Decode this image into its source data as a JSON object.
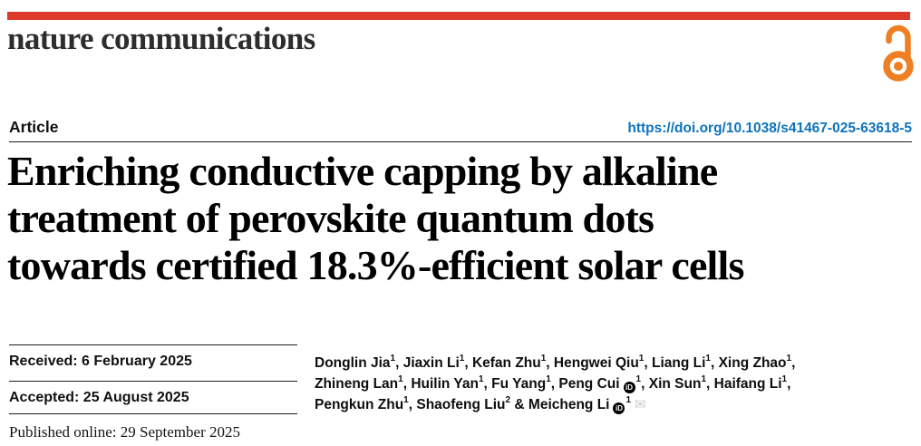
{
  "masthead": {
    "brand": "nature communications",
    "bar_color": "#DE3A2B",
    "oa_color": "#EE7F22"
  },
  "header": {
    "article_label": "Article",
    "doi": "https://doi.org/10.1038/s41467-025-63618-5",
    "doi_color": "#0D73BC"
  },
  "title": {
    "line1": "Enriching conductive capping by alkaline",
    "line2": "treatment of perovskite quantum dots",
    "line3": "towards certified 18.3%-efficient solar cells"
  },
  "history": {
    "received": "Received: 6 February 2025",
    "accepted": "Accepted: 25 August 2025",
    "published_online": "Published online: 29 September 2025"
  },
  "authors": {
    "orcid_icon": "iD",
    "email_icon": "✉",
    "lines": [
      [
        {
          "name": "Donglin Jia",
          "sup": "1",
          "sep": ", "
        },
        {
          "name": "Jiaxin Li",
          "sup": "1",
          "sep": ", "
        },
        {
          "name": "Kefan Zhu",
          "sup": "1",
          "sep": ", "
        },
        {
          "name": "Hengwei Qiu",
          "sup": "1",
          "sep": ", "
        },
        {
          "name": "Liang Li",
          "sup": "1",
          "sep": ", "
        },
        {
          "name": "Xing Zhao",
          "sup": "1",
          "sep": ","
        }
      ],
      [
        {
          "name": "Zhineng Lan",
          "sup": "1",
          "sep": ", "
        },
        {
          "name": "Huilin Yan",
          "sup": "1",
          "sep": ", "
        },
        {
          "name": "Fu Yang",
          "sup": "1",
          "sep": ", "
        },
        {
          "name": "Peng Cui",
          "sup": "1",
          "orcid": true,
          "sep": ", "
        },
        {
          "name": "Xin Sun",
          "sup": "1",
          "sep": ", "
        },
        {
          "name": "Haifang Li",
          "sup": "1",
          "sep": ","
        }
      ],
      [
        {
          "name": "Pengkun Zhu",
          "sup": "1",
          "sep": ", "
        },
        {
          "name": "Shaofeng Liu",
          "sup": "2",
          "sep": " & "
        },
        {
          "name": "Meicheng Li",
          "sup": "1",
          "orcid": true,
          "email": true,
          "sep": ""
        }
      ]
    ]
  }
}
